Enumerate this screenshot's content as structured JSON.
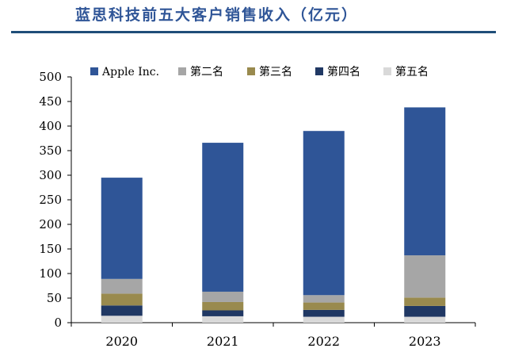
{
  "title": "蓝思科技前五大客户销售收入（亿元）",
  "chart_data": {
    "type": "bar",
    "stacked": true,
    "title": "蓝思科技前五大客户销售收入（亿元）",
    "categories": [
      "2020",
      "2021",
      "2022",
      "2023"
    ],
    "ylim": [
      0,
      500
    ],
    "yticks": [
      0,
      50,
      100,
      150,
      200,
      250,
      300,
      350,
      400,
      450,
      500
    ],
    "grid": false,
    "legend_position": "top",
    "series": [
      {
        "name": "第五名",
        "color": "#d9d9d9",
        "values": [
          14,
          13,
          12,
          12
        ]
      },
      {
        "name": "第四名",
        "color": "#203864",
        "values": [
          21,
          12,
          14,
          22
        ]
      },
      {
        "name": "第三名",
        "color": "#998a4e",
        "values": [
          24,
          17,
          15,
          17
        ]
      },
      {
        "name": "第二名",
        "color": "#a6a6a6",
        "values": [
          30,
          21,
          15,
          86
        ]
      },
      {
        "name": "Apple Inc.",
        "color": "#2f5597",
        "values": [
          206,
          303,
          334,
          301
        ]
      }
    ],
    "legend_order": [
      "Apple Inc.",
      "第二名",
      "第三名",
      "第四名",
      "第五名"
    ]
  }
}
